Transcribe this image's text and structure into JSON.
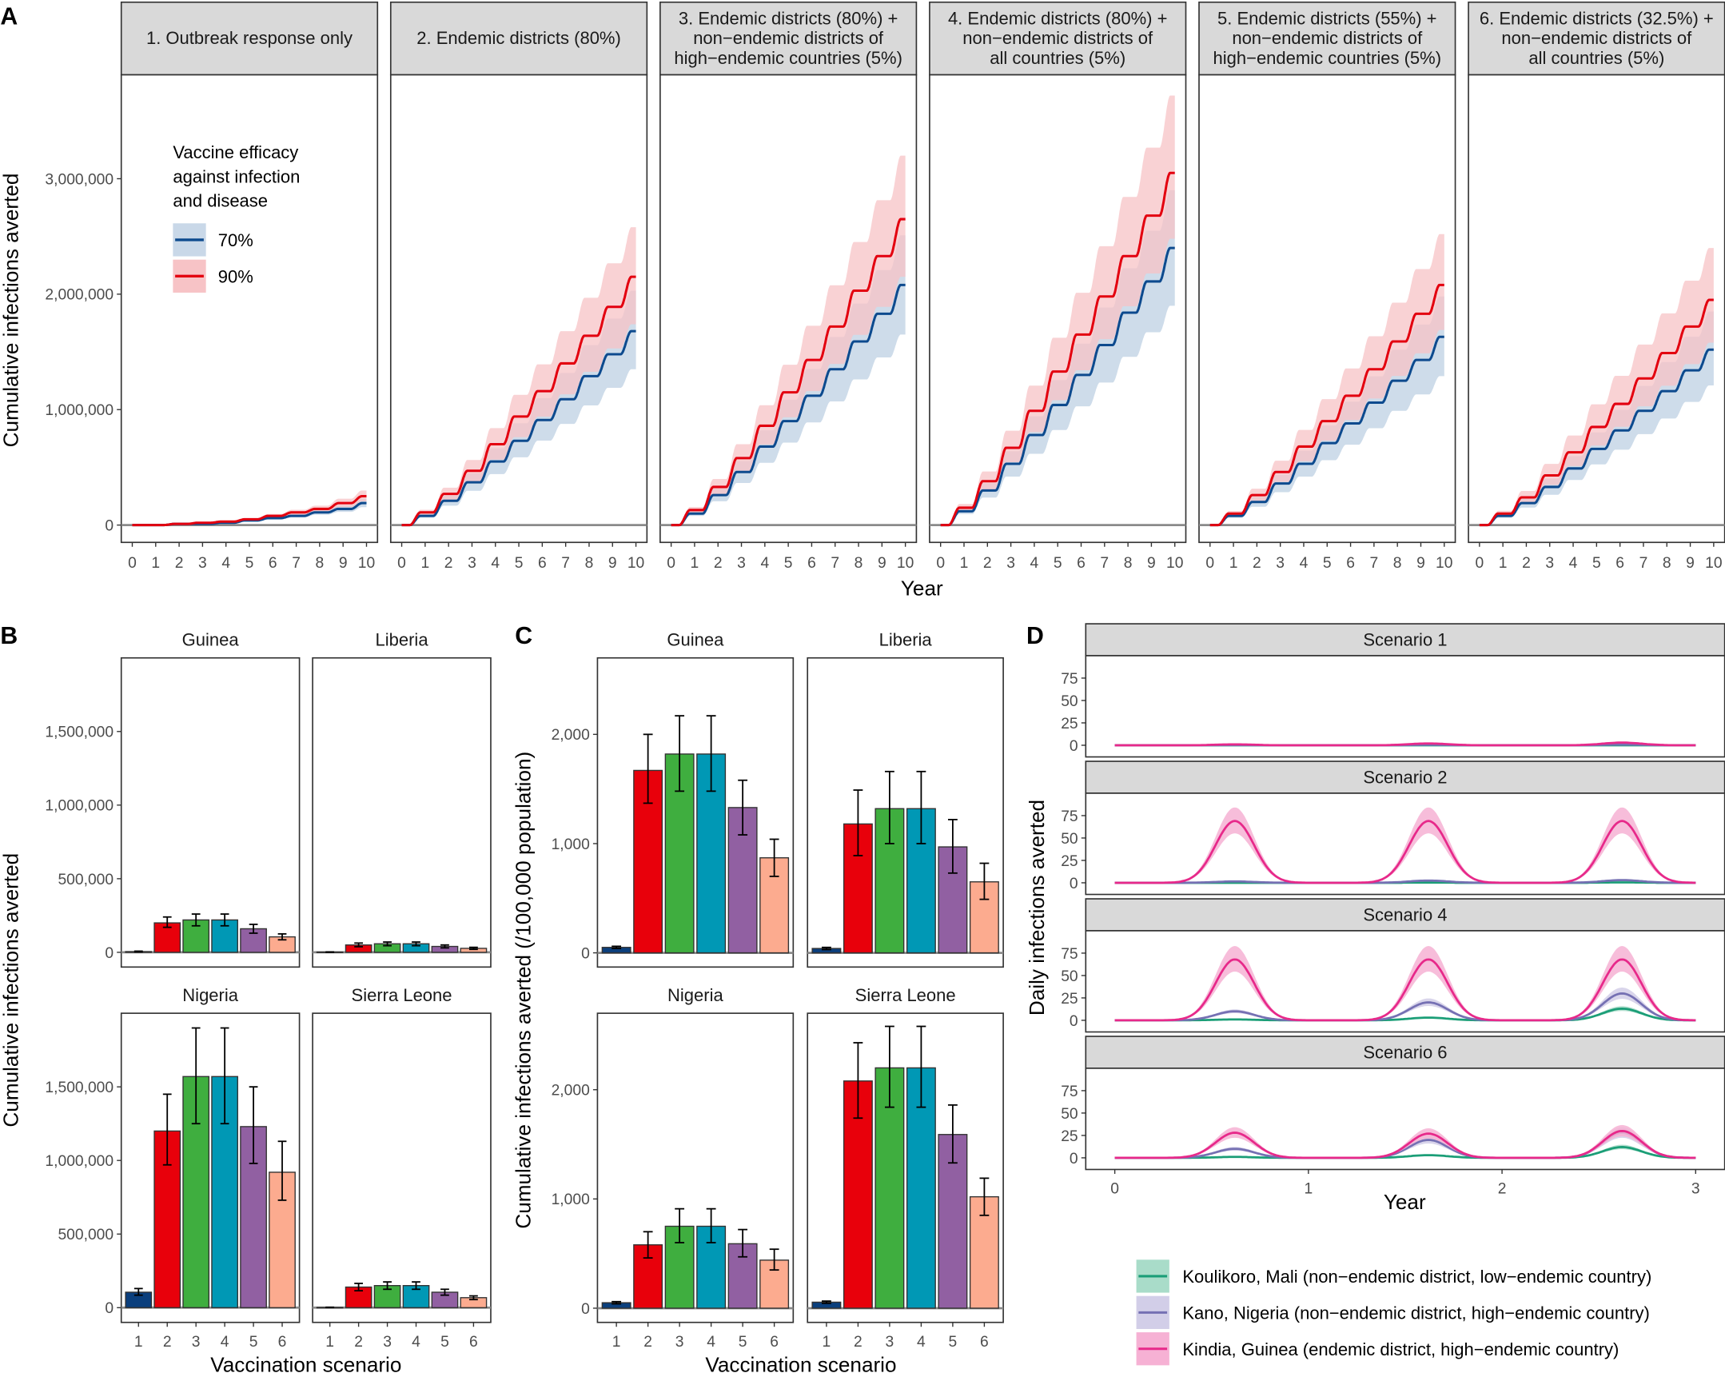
{
  "panel_letters": [
    "A",
    "B",
    "C",
    "D"
  ],
  "chart_data": [
    {
      "panel": "A",
      "type": "area",
      "xlabel": "Year",
      "ylabel": "Cumulative infections averted",
      "xlim": [
        -0.47,
        10.47
      ],
      "ylim": [
        -150000,
        3900000
      ],
      "x_ticks": [
        "0",
        "1",
        "2",
        "3",
        "4",
        "5",
        "6",
        "7",
        "8",
        "9",
        "10"
      ],
      "y_ticks": [
        {
          "value": 0,
          "label": "0"
        },
        {
          "value": 1000000,
          "label": "1,000,000"
        },
        {
          "value": 2000000,
          "label": "2,000,000"
        },
        {
          "value": 3000000,
          "label": "3,000,000"
        }
      ],
      "grid": false,
      "legend": {
        "title_lines": [
          "Vaccine efficacy",
          "against infection",
          "and disease"
        ],
        "placement": "inside top-left",
        "entries": [
          {
            "label": "70%",
            "line": "#0d4a8e",
            "band": "#c9d8e8"
          },
          {
            "label": "90%",
            "line": "#e3000f",
            "band": "#f7c3c6"
          }
        ]
      },
      "facets": [
        {
          "title_lines": [
            "1. Outbreak response only"
          ],
          "series": [
            {
              "name": "70%",
              "year_end": [
                0,
                0,
                10000,
                10000,
                20000,
                40000,
                60000,
                80000,
                110000,
                140000,
                190000
              ],
              "lower_y10": 155000,
              "upper_y10": 230000
            },
            {
              "name": "90%",
              "year_end": [
                0,
                0,
                10000,
                20000,
                30000,
                50000,
                80000,
                110000,
                140000,
                190000,
                250000
              ],
              "lower_y10": 205000,
              "upper_y10": 300000
            }
          ]
        },
        {
          "title_lines": [
            "2. Endemic districts (80%)"
          ],
          "series": [
            {
              "name": "70%",
              "year_end": [
                0,
                80000,
                210000,
                370000,
                550000,
                730000,
                910000,
                1090000,
                1290000,
                1480000,
                1680000
              ],
              "lower_y10": 1350000,
              "upper_y10": 2030000
            },
            {
              "name": "90%",
              "year_end": [
                0,
                110000,
                270000,
                470000,
                700000,
                940000,
                1160000,
                1400000,
                1640000,
                1890000,
                2150000
              ],
              "lower_y10": 1740000,
              "upper_y10": 2580000
            }
          ]
        },
        {
          "title_lines": [
            "3. Endemic districts (80%) +",
            "non−endemic districts of",
            "high−endemic countries (5%)"
          ],
          "series": [
            {
              "name": "70%",
              "year_end": [
                0,
                100000,
                260000,
                460000,
                680000,
                900000,
                1120000,
                1350000,
                1590000,
                1830000,
                2080000
              ],
              "lower_y10": 1650000,
              "upper_y10": 2510000
            },
            {
              "name": "90%",
              "year_end": [
                0,
                130000,
                330000,
                580000,
                860000,
                1150000,
                1430000,
                1720000,
                2030000,
                2330000,
                2650000
              ],
              "lower_y10": 2150000,
              "upper_y10": 3200000
            }
          ]
        },
        {
          "title_lines": [
            "4. Endemic districts (80%) +",
            "non−endemic districts of",
            "all countries (5%)"
          ],
          "series": [
            {
              "name": "70%",
              "year_end": [
                0,
                120000,
                300000,
                530000,
                780000,
                1040000,
                1300000,
                1560000,
                1840000,
                2110000,
                2400000
              ],
              "lower_y10": 1900000,
              "upper_y10": 2900000
            },
            {
              "name": "90%",
              "year_end": [
                0,
                150000,
                380000,
                670000,
                990000,
                1330000,
                1650000,
                1980000,
                2330000,
                2680000,
                3050000
              ],
              "lower_y10": 2480000,
              "upper_y10": 3720000
            }
          ]
        },
        {
          "title_lines": [
            "5. Endemic districts (55%) +",
            "non−endemic districts of",
            "high−endemic countries (5%)"
          ],
          "series": [
            {
              "name": "70%",
              "year_end": [
                0,
                80000,
                200000,
                360000,
                530000,
                710000,
                880000,
                1060000,
                1250000,
                1430000,
                1630000
              ],
              "lower_y10": 1290000,
              "upper_y10": 1980000
            },
            {
              "name": "90%",
              "year_end": [
                0,
                100000,
                260000,
                460000,
                680000,
                900000,
                1120000,
                1350000,
                1590000,
                1830000,
                2080000
              ],
              "lower_y10": 1690000,
              "upper_y10": 2520000
            }
          ]
        },
        {
          "title_lines": [
            "6. Endemic districts (32.5%) +",
            "non−endemic districts of",
            "all countries (5%)"
          ],
          "series": [
            {
              "name": "70%",
              "year_end": [
                0,
                80000,
                190000,
                330000,
                490000,
                660000,
                820000,
                990000,
                1160000,
                1340000,
                1520000
              ],
              "lower_y10": 1210000,
              "upper_y10": 1850000
            },
            {
              "name": "90%",
              "year_end": [
                0,
                100000,
                240000,
                430000,
                630000,
                850000,
                1050000,
                1270000,
                1490000,
                1720000,
                1950000
              ],
              "lower_y10": 1580000,
              "upper_y10": 2400000
            }
          ]
        }
      ]
    },
    {
      "panel": "B",
      "type": "bar",
      "xlabel": "Vaccination scenario",
      "ylabel": "Cumulative infections averted",
      "categories": [
        "1",
        "2",
        "3",
        "4",
        "5",
        "6"
      ],
      "colors": [
        "#0b3f7d",
        "#e8000b",
        "#3fae3f",
        "#0098b5",
        "#9160a2",
        "#fcab8f"
      ],
      "ylim": [
        -100000,
        2000000
      ],
      "y_ticks": [
        {
          "value": 0,
          "label": "0"
        },
        {
          "value": 500000,
          "label": "500,000"
        },
        {
          "value": 1000000,
          "label": "1,000,000"
        },
        {
          "value": 1500000,
          "label": "1,500,000"
        }
      ],
      "facets": [
        {
          "title": "Guinea",
          "values": [
            5000,
            200000,
            220000,
            220000,
            160000,
            105000
          ],
          "lower": [
            2000,
            170000,
            180000,
            180000,
            130000,
            85000
          ],
          "upper": [
            8000,
            240000,
            260000,
            260000,
            190000,
            125000
          ]
        },
        {
          "title": "Liberia",
          "values": [
            2000,
            50000,
            58000,
            58000,
            40000,
            27000
          ],
          "lower": [
            1000,
            38000,
            45000,
            45000,
            30000,
            20000
          ],
          "upper": [
            3000,
            63000,
            70000,
            70000,
            50000,
            34000
          ]
        },
        {
          "title": "Nigeria",
          "values": [
            105000,
            1200000,
            1570000,
            1570000,
            1230000,
            920000
          ],
          "lower": [
            85000,
            970000,
            1250000,
            1250000,
            980000,
            730000
          ],
          "upper": [
            130000,
            1450000,
            1900000,
            1900000,
            1500000,
            1130000
          ]
        },
        {
          "title": "Sierra Leone",
          "values": [
            2000,
            140000,
            150000,
            150000,
            105000,
            68000
          ],
          "lower": [
            1000,
            115000,
            125000,
            125000,
            85000,
            55000
          ],
          "upper": [
            3000,
            165000,
            175000,
            175000,
            125000,
            80000
          ]
        }
      ]
    },
    {
      "panel": "C",
      "type": "bar",
      "xlabel": "Vaccination scenario",
      "ylabel": "Cumulative infections averted (/100,000 population)",
      "categories": [
        "1",
        "2",
        "3",
        "4",
        "5",
        "6"
      ],
      "colors": [
        "#0b3f7d",
        "#e8000b",
        "#3fae3f",
        "#0098b5",
        "#9160a2",
        "#fcab8f"
      ],
      "ylim": [
        -130,
        2700
      ],
      "y_ticks": [
        {
          "value": 0,
          "label": "0"
        },
        {
          "value": 1000,
          "label": "1,000"
        },
        {
          "value": 2000,
          "label": "2,000"
        }
      ],
      "facets": [
        {
          "title": "Guinea",
          "values": [
            50,
            1670,
            1820,
            1820,
            1330,
            870
          ],
          "lower": [
            40,
            1370,
            1480,
            1480,
            1080,
            700
          ],
          "upper": [
            60,
            2000,
            2170,
            2170,
            1580,
            1040
          ]
        },
        {
          "title": "Liberia",
          "values": [
            40,
            1180,
            1320,
            1320,
            970,
            650
          ],
          "lower": [
            30,
            890,
            1000,
            1000,
            730,
            490
          ],
          "upper": [
            50,
            1490,
            1660,
            1660,
            1220,
            820
          ]
        },
        {
          "title": "Nigeria",
          "values": [
            50,
            580,
            750,
            750,
            590,
            440
          ],
          "lower": [
            40,
            460,
            600,
            600,
            470,
            350
          ],
          "upper": [
            60,
            700,
            910,
            910,
            720,
            540
          ]
        },
        {
          "title": "Sierra Leone",
          "values": [
            55,
            2080,
            2200,
            2200,
            1590,
            1020
          ],
          "lower": [
            45,
            1740,
            1840,
            1840,
            1330,
            850
          ],
          "upper": [
            65,
            2430,
            2580,
            2580,
            1860,
            1190
          ]
        }
      ]
    },
    {
      "panel": "D",
      "type": "line",
      "xlabel": "Year",
      "ylabel": "Daily infections averted",
      "xlim": [
        -0.15,
        3.15
      ],
      "ylim": [
        -13,
        100
      ],
      "x_ticks": [
        {
          "value": 0,
          "label": "0"
        },
        {
          "value": 1,
          "label": "1"
        },
        {
          "value": 2,
          "label": "2"
        },
        {
          "value": 3,
          "label": "3"
        }
      ],
      "y_ticks": [
        {
          "value": 0,
          "label": "0"
        },
        {
          "value": 25,
          "label": "25"
        },
        {
          "value": 50,
          "label": "50"
        },
        {
          "value": 75,
          "label": "75"
        }
      ],
      "peak_years": [
        0.62,
        1.62,
        2.62
      ],
      "legend": {
        "placement": "bottom",
        "entries": [
          {
            "label": "Koulikoro, Mali (non−endemic district, low−endemic country)",
            "line": "#1b9e77",
            "band": "#a9dcc9"
          },
          {
            "label": "Kano, Nigeria (non−endemic district, high−endemic country)",
            "line": "#7570b3",
            "band": "#d2cee8"
          },
          {
            "label": "Kindia, Guinea (endemic district, high−endemic country)",
            "line": "#e7298a",
            "band": "#f6b1d4"
          }
        ]
      },
      "facets": [
        {
          "title": "Scenario 1",
          "peaks": {
            "Koulikoro": [
              0,
              0,
              0
            ],
            "Kano": [
              0.3,
              0.5,
              0.8
            ],
            "Kindia": [
              1,
              2,
              3
            ]
          }
        },
        {
          "title": "Scenario 2",
          "peaks": {
            "Koulikoro": [
              0,
              0.2,
              0.4
            ],
            "Kano": [
              1.5,
              2.5,
              3
            ],
            "Kindia": [
              69,
              69,
              69
            ]
          }
        },
        {
          "title": "Scenario 4",
          "peaks": {
            "Koulikoro": [
              1,
              3,
              13
            ],
            "Kano": [
              10,
              20,
              30
            ],
            "Kindia": [
              68,
              68,
              68
            ]
          }
        },
        {
          "title": "Scenario 6",
          "peaks": {
            "Koulikoro": [
              1,
              3,
              12
            ],
            "Kano": [
              10,
              20,
              28
            ],
            "Kindia": [
              28,
              27,
              30
            ]
          }
        }
      ]
    }
  ]
}
